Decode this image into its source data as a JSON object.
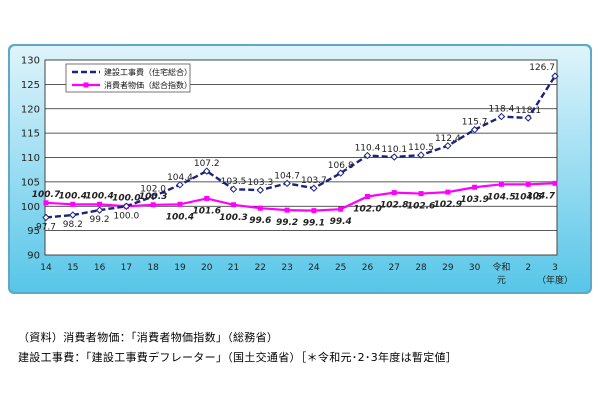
{
  "chart_data": {
    "type": "line",
    "x": [
      "14",
      "15",
      "16",
      "17",
      "18",
      "19",
      "20",
      "21",
      "22",
      "23",
      "24",
      "25",
      "26",
      "27",
      "28",
      "29",
      "30",
      "令和元",
      "2",
      "3"
    ],
    "x_tick_labels": [
      "14",
      "15",
      "16",
      "17",
      "18",
      "19",
      "20",
      "21",
      "22",
      "23",
      "24",
      "25",
      "26",
      "27",
      "28",
      "29",
      "30",
      "令和",
      "2",
      "3"
    ],
    "x_tick_sublabels": {
      "令和": "元",
      "3": "（年度）"
    },
    "ylim": [
      90,
      130
    ],
    "yticks": [
      90,
      95,
      100,
      105,
      110,
      115,
      120,
      125,
      130
    ],
    "grid": true,
    "legend_position": "top-left",
    "series": [
      {
        "name": "建設工事費（住宅総合）",
        "color": "#1a237e",
        "line_style": "dashed",
        "values": [
          97.7,
          98.2,
          99.2,
          100.0,
          102.0,
          104.4,
          107.2,
          103.5,
          103.3,
          104.7,
          103.7,
          106.8,
          110.4,
          110.1,
          110.5,
          112.4,
          115.7,
          118.4,
          118.1,
          126.7
        ],
        "labels": [
          "97.7",
          "98.2",
          "99.2",
          "100.0",
          "102.0",
          "104.4",
          "107.2",
          "103.5",
          "103.3",
          "104.7",
          "103.7",
          "106.8",
          "110.4",
          "110.1",
          "110.5",
          "112.4",
          "115.7",
          "118.4",
          "118.1",
          "126.7"
        ]
      },
      {
        "name": "消費者物価（総合指数）",
        "color": "#ff00ff",
        "line_style": "solid",
        "values": [
          100.7,
          100.4,
          100.4,
          100.0,
          100.3,
          100.4,
          101.6,
          100.3,
          99.6,
          99.2,
          99.1,
          99.4,
          102.0,
          102.8,
          102.6,
          102.9,
          103.9,
          104.5,
          104.5,
          104.7
        ],
        "labels": [
          "100.7",
          "100.4",
          "100.4",
          "100.0",
          "100.3",
          "100.4",
          "101.6",
          "100.3",
          "99.6",
          "99.2",
          "99.1",
          "99.4",
          "102.0",
          "102.8",
          "102.6",
          "102.9",
          "103.9",
          "104.5",
          "104.5",
          "104.7"
        ]
      }
    ]
  },
  "notes": {
    "line1": "（資料）消費者物価：「消費者物価指数」（総務省）",
    "line2": "建設工事費：「建設工事費デフレーター」（国土交通省）［＊令和元･2･3年度は暫定値］"
  }
}
